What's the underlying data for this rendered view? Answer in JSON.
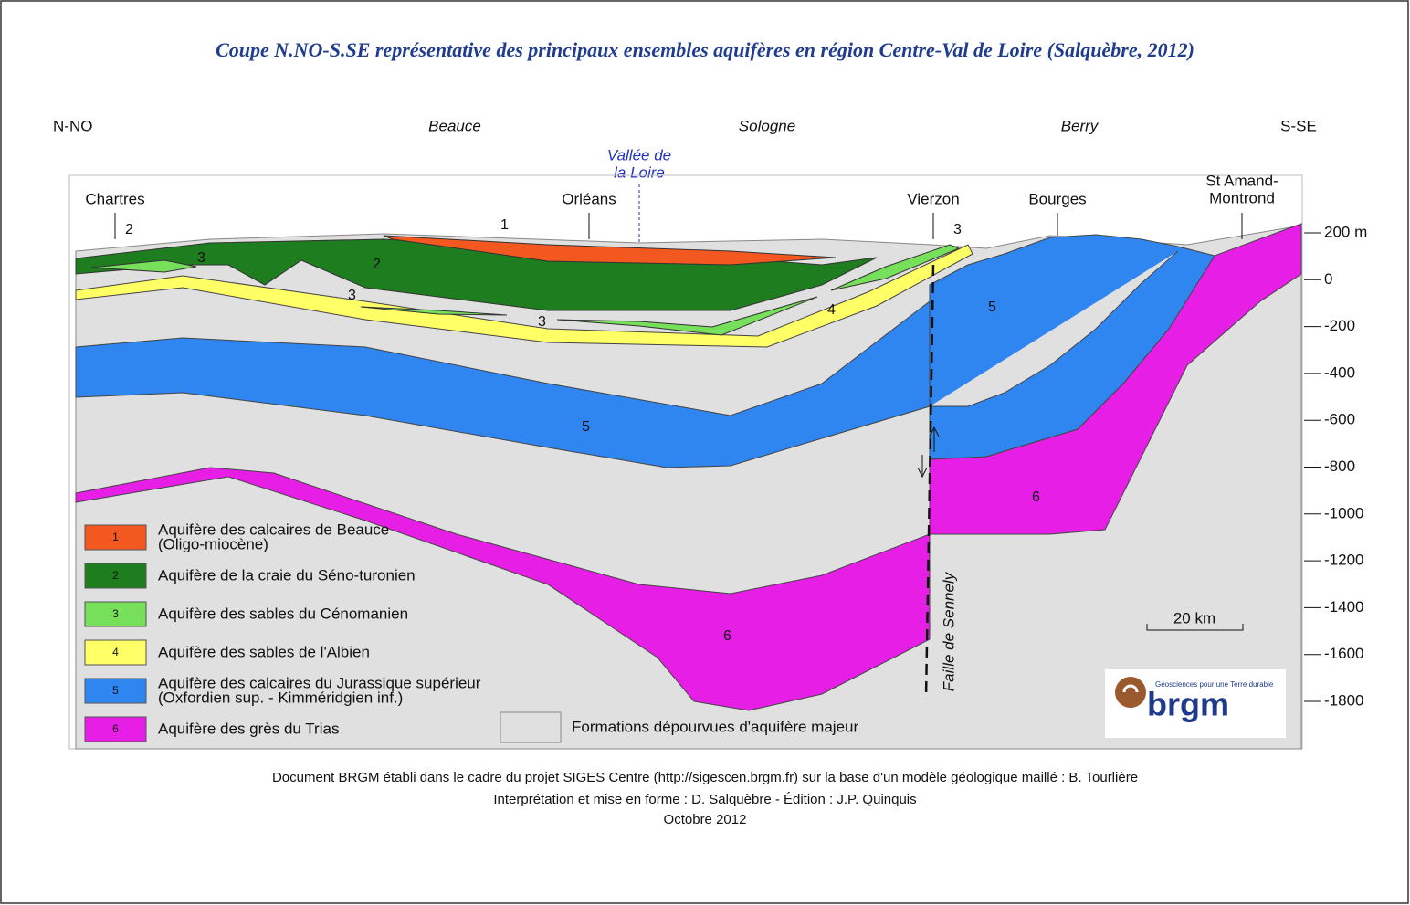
{
  "title": "Coupe N.NO-S.SE représentative des principaux ensembles aquifères en région Centre-Val de Loire (Salquèbre, 2012)",
  "regions": [
    "N-NO",
    "Beauce",
    "Sologne",
    "Berry",
    "S-SE"
  ],
  "river": [
    "Vallée de",
    "la Loire"
  ],
  "towns": [
    [
      "Chartres"
    ],
    [
      "Orléans"
    ],
    [
      "Vierzon"
    ],
    [
      "Bourges"
    ],
    [
      "St Amand-",
      "Montrond"
    ]
  ],
  "elevation_axis": {
    "ticks": [
      "200 m",
      "0",
      "-200",
      "-400",
      "-600",
      "-800",
      "-1000",
      "-1200",
      "-1400",
      "-1600",
      "-1800"
    ]
  },
  "layer_labels": [
    "1",
    "2",
    "3",
    "2",
    "3",
    "3",
    "4",
    "3",
    "5",
    "5",
    "6",
    "6"
  ],
  "fault": "Faille de Sennely",
  "scale": "20 km",
  "legend": [
    {
      "number": "1",
      "label": [
        "Aquifère des calcaires de Beauce",
        "(Oligo-miocène)"
      ],
      "color": "#f2581f"
    },
    {
      "number": "2",
      "label": [
        "Aquifère de la craie du Séno-turonien"
      ],
      "color": "#1e7d1e"
    },
    {
      "number": "3",
      "label": [
        "Aquifère des sables du Cénomanien"
      ],
      "color": "#77e05a"
    },
    {
      "number": "4",
      "label": [
        "Aquifère des sables de l'Albien"
      ],
      "color": "#ffff66"
    },
    {
      "number": "5",
      "label": [
        "Aquifère des calcaires du Jurassique supérieur",
        "(Oxfordien sup. - Kimméridgien inf.)"
      ],
      "color": "#2f86f0"
    },
    {
      "number": "6",
      "label": [
        "Aquifère des grès du Trias"
      ],
      "color": "#e61ee6"
    }
  ],
  "legend_other": "Formations dépourvues d'aquifère majeur",
  "logo": {
    "name": "brgm",
    "tagline": "Géosciences pour une Terre durable"
  },
  "footer": [
    "Document BRGM établi dans le cadre du projet SIGES Centre (http://sigescen.brgm.fr) sur la base d'un modèle géologique maillé : B. Tourlière",
    "Interprétation et mise en forme : D. Salquèbre - Édition : J.P. Quinquis",
    "Octobre 2012"
  ]
}
